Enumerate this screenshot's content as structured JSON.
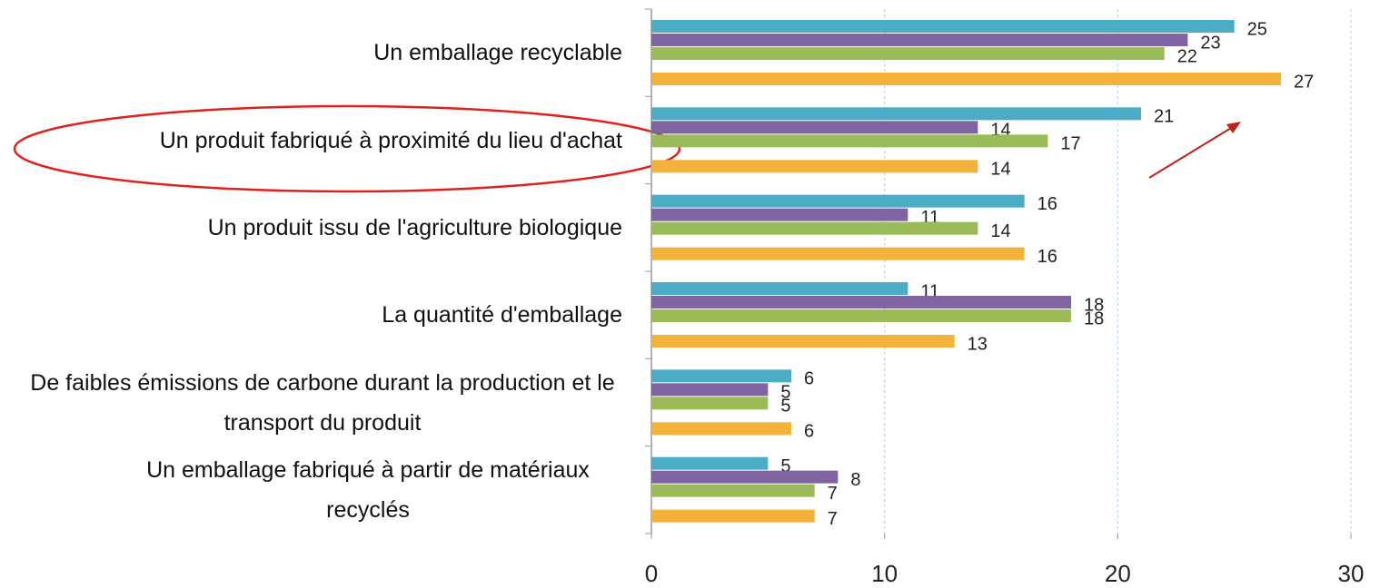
{
  "chart_data": {
    "type": "bar",
    "orientation": "horizontal",
    "categories": [
      "Un emballage recyclable",
      "Un produit fabriqué à proximité du lieu d'achat",
      "Un produit issu de l'agriculture biologique",
      "La quantité d'emballage",
      "De faibles émissions de carbone durant la production et le transport du produit",
      "Un emballage fabriqué à partir de matériaux recyclés"
    ],
    "series": [
      {
        "color": "#4bacc6",
        "values": [
          25,
          21,
          16,
          11,
          6,
          5
        ]
      },
      {
        "color": "#8064a2",
        "values": [
          23,
          14,
          11,
          18,
          5,
          8
        ]
      },
      {
        "color": "#9bbb59",
        "values": [
          22,
          17,
          14,
          18,
          5,
          7
        ]
      },
      {
        "color": "#f5b23a",
        "values": [
          27,
          14,
          16,
          13,
          6,
          7
        ]
      }
    ],
    "xlim": [
      0,
      30
    ],
    "xticks": [
      0,
      10,
      20,
      30
    ],
    "grid": true
  }
}
